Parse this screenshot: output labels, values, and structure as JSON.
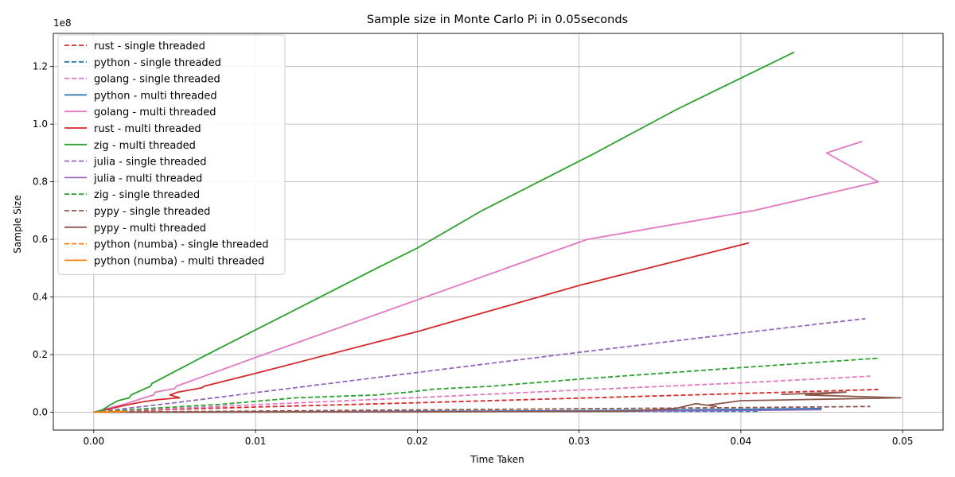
{
  "chart_data": {
    "type": "line",
    "title": "Sample size in Monte Carlo Pi in 0.05seconds",
    "xlabel": "Time Taken",
    "ylabel": "Sample Size",
    "y_offset_text": "1e8",
    "y_scale": 100000000,
    "xlim": [
      -0.0025,
      0.0525
    ],
    "ylim": [
      -6200000,
      131500000
    ],
    "xticks": [
      0.0,
      0.01,
      0.02,
      0.03,
      0.04,
      0.05
    ],
    "xtick_labels": [
      "0.00",
      "0.01",
      "0.02",
      "0.03",
      "0.04",
      "0.05"
    ],
    "yticks": [
      0,
      20000000,
      40000000,
      60000000,
      80000000,
      100000000,
      120000000
    ],
    "ytick_labels": [
      "0.0",
      "0.2",
      "0.4",
      "0.6",
      "0.8",
      "1.0",
      "1.2"
    ],
    "grid": true,
    "legend_position": "upper-left",
    "series": [
      {
        "name": "rust - single threaded",
        "color": "#d62728",
        "dash": "dashed",
        "x": [
          0.0,
          0.002,
          0.005,
          0.01,
          0.02,
          0.03,
          0.04,
          0.0485
        ],
        "y": [
          0,
          400000,
          1000000,
          1800000,
          3300000,
          4900000,
          6500000,
          7900000
        ]
      },
      {
        "name": "python - single threaded",
        "color": "#1f77b4",
        "dash": "dashed",
        "x": [
          0.0,
          0.01,
          0.02,
          0.03,
          0.0412
        ],
        "y": [
          0,
          100000,
          200000,
          300000,
          350000
        ]
      },
      {
        "name": "golang - single threaded",
        "color": "#e377c2",
        "dash": "dashed",
        "x": [
          0.0,
          0.005,
          0.01,
          0.02,
          0.03,
          0.04,
          0.048
        ],
        "y": [
          0,
          1300000,
          2600000,
          5100000,
          7700000,
          10200000,
          12500000
        ]
      },
      {
        "name": "python - multi threaded",
        "color": "#1f77b4",
        "dash": "solid",
        "x": [
          0.0,
          0.01,
          0.02,
          0.03,
          0.04,
          0.045
        ],
        "y": [
          0,
          100000,
          300000,
          500000,
          1000000,
          1300000
        ]
      },
      {
        "name": "golang - multi threaded",
        "color": "#e377c2",
        "dash": "solid",
        "x": [
          0.0,
          0.001,
          0.002,
          0.003,
          0.0037,
          0.0038,
          0.005,
          0.0051,
          0.01,
          0.02,
          0.0305,
          0.0408,
          0.0485,
          0.0453,
          0.0475
        ],
        "y": [
          0,
          1500000,
          3000000,
          4800000,
          6000000,
          7000000,
          8200000,
          9000000,
          19000000,
          39000000,
          60000000,
          70000000,
          80000000,
          90000000,
          94000000
        ]
      },
      {
        "name": "rust - multi threaded",
        "color": "#d62728",
        "dash": "solid",
        "x": [
          0.0,
          0.001,
          0.002,
          0.003,
          0.004,
          0.0053,
          0.0047,
          0.0052,
          0.0067,
          0.0068,
          0.01,
          0.02,
          0.03,
          0.0405
        ],
        "y": [
          0,
          1200000,
          2500000,
          3600000,
          4400000,
          5000000,
          6000000,
          7000000,
          8500000,
          9000000,
          13500000,
          28000000,
          44000000,
          58800000
        ]
      },
      {
        "name": "zig - multi threaded",
        "color": "#2ca02c",
        "dash": "solid",
        "x": [
          0.0,
          0.0005,
          0.001,
          0.0015,
          0.0022,
          0.0023,
          0.0033,
          0.0035,
          0.0036,
          0.007,
          0.0105,
          0.014,
          0.0175,
          0.02,
          0.024,
          0.031,
          0.036,
          0.0433
        ],
        "y": [
          0,
          700000,
          2500000,
          4000000,
          5000000,
          6000000,
          8500000,
          9000000,
          10000000,
          20000000,
          30000000,
          40000000,
          50000000,
          57000000,
          70000000,
          90000000,
          105000000,
          125000000
        ]
      },
      {
        "name": "julia - single threaded",
        "color": "#9467bd",
        "dash": "dashed",
        "x": [
          0.0,
          0.005,
          0.01,
          0.02,
          0.03,
          0.04,
          0.0477
        ],
        "y": [
          0,
          3300000,
          6800000,
          13800000,
          20800000,
          27500000,
          32500000
        ]
      },
      {
        "name": "julia - multi threaded",
        "color": "#9467bd",
        "dash": "solid",
        "x": [
          0.0,
          0.01,
          0.02,
          0.03,
          0.04,
          0.045
        ],
        "y": [
          0,
          100000,
          200000,
          350000,
          600000,
          900000
        ]
      },
      {
        "name": "zig - single threaded",
        "color": "#2ca02c",
        "dash": "dashed",
        "x": [
          0.0,
          0.004,
          0.008,
          0.0125,
          0.0175,
          0.0195,
          0.021,
          0.0245,
          0.03,
          0.04,
          0.0486
        ],
        "y": [
          0,
          1500000,
          2800000,
          5000000,
          6000000,
          7000000,
          8000000,
          9000000,
          11500000,
          15500000,
          18800000
        ]
      },
      {
        "name": "pypy - single threaded",
        "color": "#8c564b",
        "dash": "dashed",
        "x": [
          0.0,
          0.01,
          0.02,
          0.03,
          0.04,
          0.048
        ],
        "y": [
          0,
          400000,
          800000,
          1200000,
          1600000,
          2000000
        ]
      },
      {
        "name": "pypy - multi threaded",
        "color": "#8c564b",
        "dash": "solid",
        "x": [
          0.0,
          0.01,
          0.02,
          0.024,
          0.033,
          0.036,
          0.0372,
          0.0385,
          0.038,
          0.04,
          0.045,
          0.0499,
          0.044,
          0.0465,
          0.0425
        ],
        "y": [
          0,
          50000,
          100000,
          200000,
          300000,
          1300000,
          3000000,
          2000000,
          2500000,
          4000000,
          4500000,
          5000000,
          6000000,
          7000000,
          6200000
        ]
      },
      {
        "name": "python (numba) - single threaded",
        "color": "#ff7f0e",
        "dash": "dashed",
        "x": [
          0.0,
          0.002
        ],
        "y": [
          0,
          200000
        ]
      },
      {
        "name": "python (numba) - multi threaded",
        "color": "#ff7f0e",
        "dash": "solid",
        "x": [
          0.0,
          0.0018
        ],
        "y": [
          0,
          300000
        ]
      }
    ]
  }
}
